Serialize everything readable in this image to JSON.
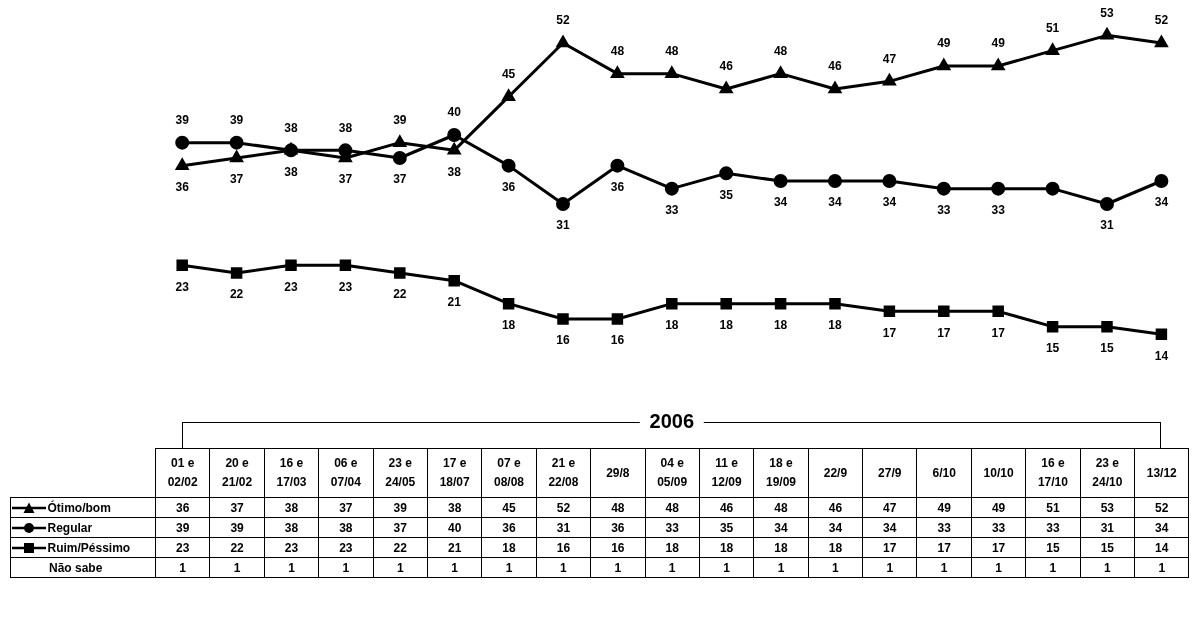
{
  "chart_data": [
    {
      "type": "line",
      "categories": [
        null,
        null,
        null,
        null,
        null,
        null,
        null,
        null,
        null,
        null,
        null,
        null,
        null,
        null,
        null,
        null,
        null,
        null,
        null
      ],
      "series": [
        {
          "name": "Ótimo/bom",
          "color": "#000000",
          "marker": "triangle",
          "values": [
            36,
            37,
            38,
            37,
            39,
            38,
            45,
            52,
            48,
            48,
            46,
            48,
            46,
            47,
            49,
            49,
            51,
            53,
            52
          ],
          "value_labels": [
            "36",
            "37",
            "38",
            "37",
            "39",
            "38",
            "45",
            "52",
            "48",
            "48",
            "46",
            "48",
            "46",
            "47",
            "49",
            "49",
            "51",
            "53",
            "52"
          ]
        },
        {
          "name": "Regular",
          "color": "#000000",
          "marker": "circle",
          "values": [
            39,
            39,
            38,
            38,
            37,
            40,
            36,
            31,
            36,
            33,
            35,
            34,
            34,
            34,
            33,
            33,
            33,
            31,
            34
          ],
          "value_labels": [
            "39",
            "39",
            "38",
            "38",
            "37",
            "40",
            "36",
            "31",
            "36",
            "33",
            "35",
            "34",
            "34",
            "34",
            "33",
            "33",
            null,
            "31",
            "34"
          ]
        },
        {
          "name": "Ruim/Péssimo",
          "color": "#000000",
          "marker": "square",
          "values": [
            23,
            22,
            23,
            23,
            22,
            21,
            18,
            16,
            16,
            18,
            18,
            18,
            18,
            17,
            17,
            17,
            15,
            15,
            14
          ],
          "value_labels": [
            "23",
            "22",
            "23",
            "23",
            "22",
            "21",
            "18",
            "16",
            "16",
            "18",
            "18",
            "18",
            "18",
            "17",
            "17",
            "17",
            "15",
            "15",
            "14"
          ]
        }
      ],
      "grid": false,
      "legend": "bottom left",
      "tick_labels": false,
      "line_style": "solid"
    },
    {
      "type": "other",
      "categories": [
        "01 e 02/02",
        "20 e 21/02",
        "16 e 17/03",
        "06 e 07/04",
        "23 e 24/05",
        "17 e 18/07",
        "07 e 08/08",
        "21 e 22/08",
        "29/8",
        "04 e 05/09",
        "11 e 12/09",
        "18 e 19/09",
        "22/9",
        "27/9",
        "6/10",
        "10/10",
        "16 e 17/10",
        "23 e 24/10",
        "13/12"
      ],
      "series": [
        {
          "values": [
            36,
            37,
            38,
            37,
            39,
            38,
            45,
            52,
            48,
            48,
            46,
            48,
            46,
            47,
            49,
            49,
            51,
            53,
            52
          ]
        },
        {
          "values": [
            39,
            39,
            38,
            38,
            37,
            40,
            36,
            31,
            36,
            33,
            35,
            34,
            34,
            34,
            33,
            33,
            33,
            31,
            34
          ]
        },
        {
          "values": [
            23,
            22,
            23,
            23,
            22,
            21,
            18,
            16,
            16,
            18,
            18,
            18,
            18,
            17,
            17,
            17,
            15,
            15,
            14
          ]
        },
        {
          "name": "Não sabe",
          "values": [
            1,
            1,
            1,
            1,
            1,
            1,
            1,
            1,
            1,
            1,
            1,
            1,
            1,
            1,
            1,
            1,
            1,
            1,
            1
          ]
        }
      ],
      "data_labels": true,
      "annotations": [
        "2006"
      ]
    }
  ]
}
